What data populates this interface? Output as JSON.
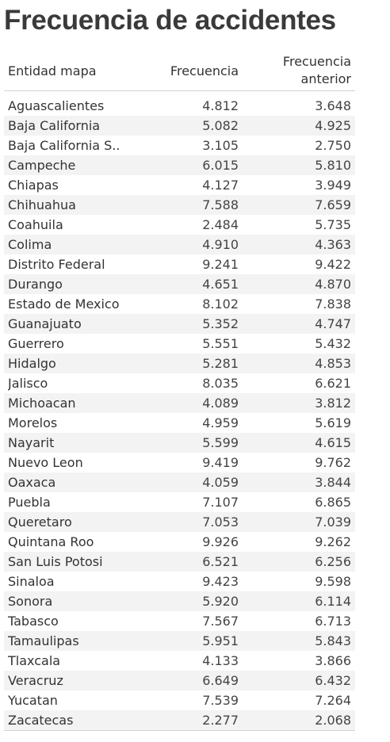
{
  "title": "Frecuencia de accidentes",
  "columns": {
    "entity": "Entidad mapa",
    "frequency": "Frecuencia",
    "previous": "Frecuencia\nanterior"
  },
  "chart_data": {
    "type": "table",
    "title": "Frecuencia de accidentes",
    "columns": [
      "Entidad mapa",
      "Frecuencia",
      "Frecuencia anterior"
    ],
    "rows": [
      [
        "Aguascalientes",
        "4.812",
        "3.648"
      ],
      [
        "Baja California",
        "5.082",
        "4.925"
      ],
      [
        "Baja California S..",
        "3.105",
        "2.750"
      ],
      [
        "Campeche",
        "6.015",
        "5.810"
      ],
      [
        "Chiapas",
        "4.127",
        "3.949"
      ],
      [
        "Chihuahua",
        "7.588",
        "7.659"
      ],
      [
        "Coahuila",
        "2.484",
        "5.735"
      ],
      [
        "Colima",
        "4.910",
        "4.363"
      ],
      [
        "Distrito Federal",
        "9.241",
        "9.422"
      ],
      [
        "Durango",
        "4.651",
        "4.870"
      ],
      [
        "Estado de Mexico",
        "8.102",
        "7.838"
      ],
      [
        "Guanajuato",
        "5.352",
        "4.747"
      ],
      [
        "Guerrero",
        "5.551",
        "5.432"
      ],
      [
        "Hidalgo",
        "5.281",
        "4.853"
      ],
      [
        "Jalisco",
        "8.035",
        "6.621"
      ],
      [
        "Michoacan",
        "4.089",
        "3.812"
      ],
      [
        "Morelos",
        "4.959",
        "5.619"
      ],
      [
        "Nayarit",
        "5.599",
        "4.615"
      ],
      [
        "Nuevo Leon",
        "9.419",
        "9.762"
      ],
      [
        "Oaxaca",
        "4.059",
        "3.844"
      ],
      [
        "Puebla",
        "7.107",
        "6.865"
      ],
      [
        "Queretaro",
        "7.053",
        "7.039"
      ],
      [
        "Quintana Roo",
        "9.926",
        "9.262"
      ],
      [
        "San Luis Potosi",
        "6.521",
        "6.256"
      ],
      [
        "Sinaloa",
        "9.423",
        "9.598"
      ],
      [
        "Sonora",
        "5.920",
        "6.114"
      ],
      [
        "Tabasco",
        "7.567",
        "6.713"
      ],
      [
        "Tamaulipas",
        "5.951",
        "5.843"
      ],
      [
        "Tlaxcala",
        "4.133",
        "3.866"
      ],
      [
        "Veracruz",
        "6.649",
        "6.432"
      ],
      [
        "Yucatan",
        "7.539",
        "7.264"
      ],
      [
        "Zacatecas",
        "2.277",
        "2.068"
      ]
    ]
  }
}
